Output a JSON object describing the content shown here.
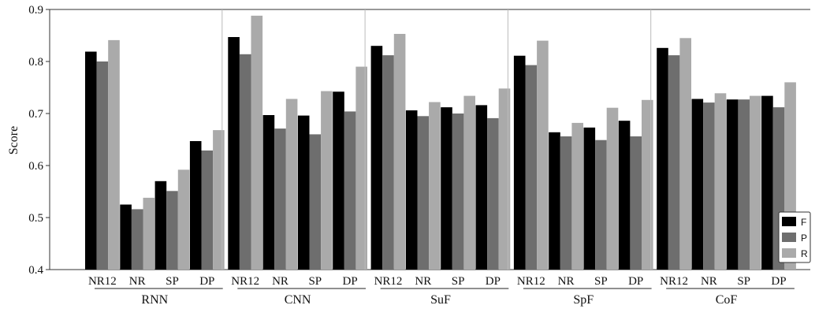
{
  "chart_data": {
    "type": "bar",
    "ylabel": "Score",
    "ylim": [
      0.4,
      0.9
    ],
    "yticks": [
      "0.4",
      "0.5",
      "0.6",
      "0.7",
      "0.8",
      "0.9"
    ],
    "grid": false,
    "legend_position": "bottom-right",
    "groups": [
      {
        "name": "RNN",
        "categories": [
          "NR12",
          "NR",
          "SP",
          "DP"
        ]
      },
      {
        "name": "CNN",
        "categories": [
          "NR12",
          "NR",
          "SP",
          "DP"
        ]
      },
      {
        "name": "SuF",
        "categories": [
          "NR12",
          "NR",
          "SP",
          "DP"
        ]
      },
      {
        "name": "SpF",
        "categories": [
          "NR12",
          "NR",
          "SP",
          "DP"
        ]
      },
      {
        "name": "CoF",
        "categories": [
          "NR12",
          "NR",
          "SP",
          "DP"
        ]
      }
    ],
    "series": [
      {
        "name": "F",
        "color": "#000000",
        "values": [
          [
            0.819,
            0.525,
            0.57,
            0.647
          ],
          [
            0.847,
            0.697,
            0.696,
            0.742
          ],
          [
            0.83,
            0.706,
            0.712,
            0.716
          ],
          [
            0.811,
            0.664,
            0.673,
            0.686
          ],
          [
            0.826,
            0.728,
            0.727,
            0.734
          ]
        ]
      },
      {
        "name": "P",
        "color": "#6e6e6e",
        "values": [
          [
            0.8,
            0.516,
            0.551,
            0.629
          ],
          [
            0.814,
            0.671,
            0.66,
            0.704
          ],
          [
            0.812,
            0.695,
            0.7,
            0.691
          ],
          [
            0.793,
            0.656,
            0.649,
            0.656
          ],
          [
            0.812,
            0.721,
            0.727,
            0.712
          ]
        ]
      },
      {
        "name": "R",
        "color": "#aaaaaa",
        "values": [
          [
            0.841,
            0.538,
            0.592,
            0.668
          ],
          [
            0.888,
            0.728,
            0.743,
            0.79
          ],
          [
            0.853,
            0.722,
            0.734,
            0.748
          ],
          [
            0.84,
            0.682,
            0.711,
            0.726
          ],
          [
            0.845,
            0.739,
            0.734,
            0.76
          ]
        ]
      }
    ]
  }
}
